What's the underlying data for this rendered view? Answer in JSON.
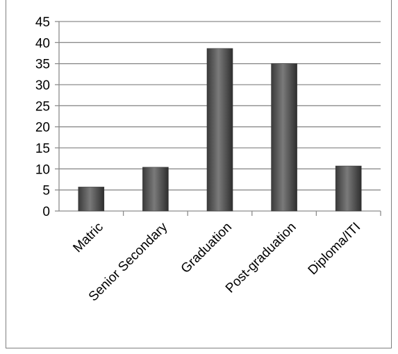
{
  "chart_data": {
    "type": "bar",
    "title": "",
    "xlabel": "",
    "ylabel": "",
    "categories": [
      "Matric",
      "Senior Secondary",
      "Graduation",
      "Post-graduation",
      "Diploma/ITI"
    ],
    "values": [
      5.7,
      10.4,
      38.6,
      35.0,
      10.7
    ],
    "ylim": [
      0,
      45
    ],
    "yticks": [
      "0",
      "5",
      "10",
      "15",
      "20",
      "25",
      "30",
      "35",
      "40",
      "45"
    ],
    "grid": true,
    "legend": "none",
    "colors": {
      "bar": "#595959",
      "grid": "#8c8c8c",
      "axis": "#8c8c8c"
    }
  }
}
